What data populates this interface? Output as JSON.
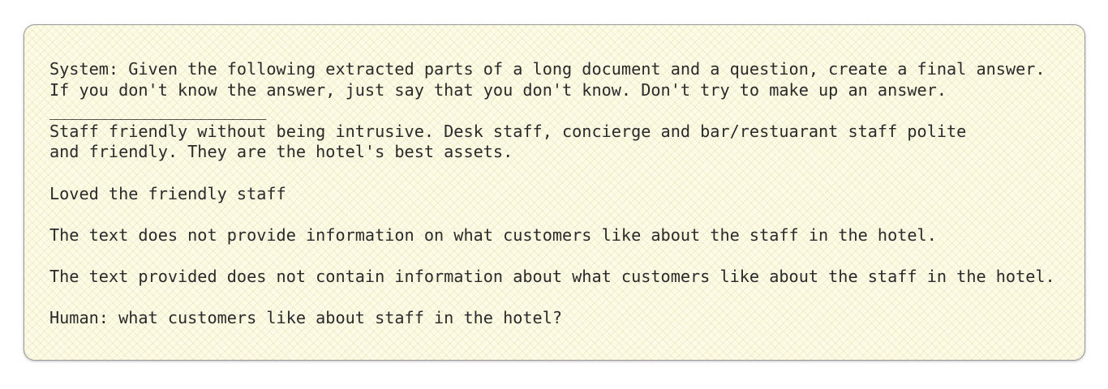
{
  "blocks": [
    [
      "System: Given the following extracted parts of a long document and a question, create a final answer.",
      "If you don't know the answer, just say that you don't know. Don't try to make up an answer.",
      "______________________",
      "Staff friendly without being intrusive. Desk staff, concierge and bar/restuarant staff polite",
      "and friendly. They are the hotel's best assets."
    ],
    [
      "Loved the friendly staff"
    ],
    [
      "The text does not provide information on what customers like about the staff in the hotel."
    ],
    [
      "The text provided does not contain information about what customers like about the staff in the hotel."
    ],
    [
      "Human: what customers like about staff in the hotel?"
    ]
  ]
}
